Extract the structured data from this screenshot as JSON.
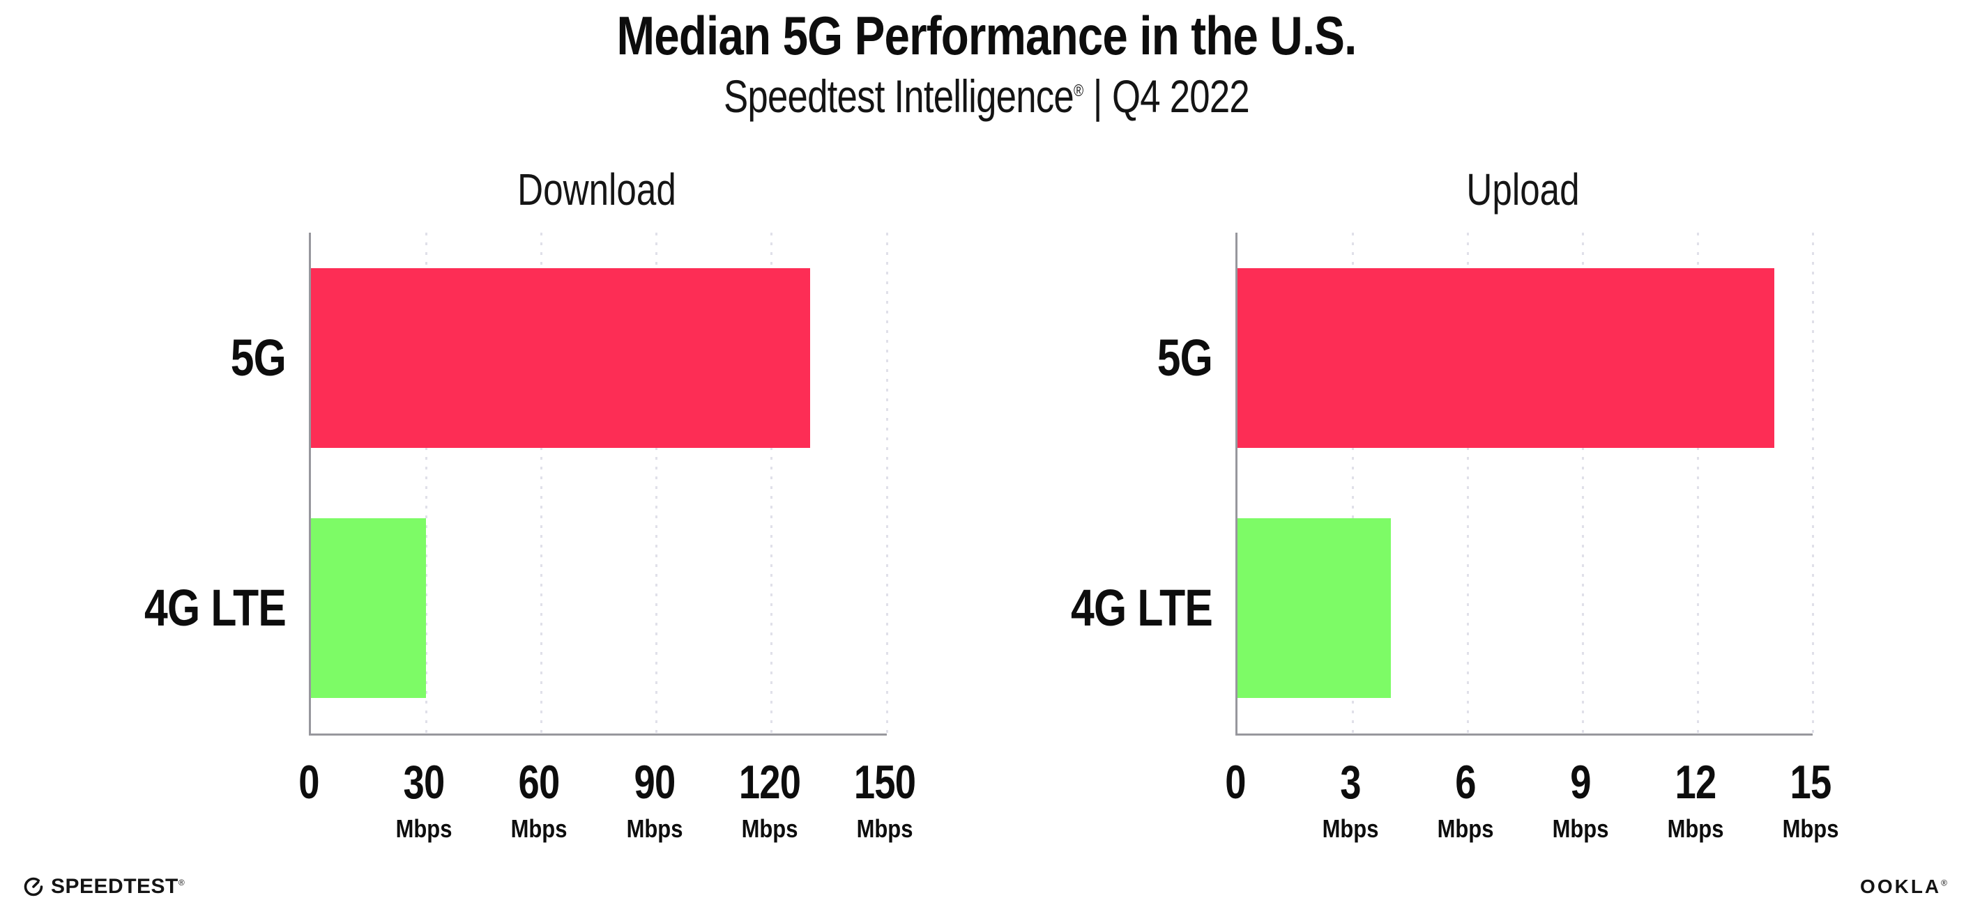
{
  "header": {
    "title": "Median 5G Performance in the U.S.",
    "subtitle": {
      "brand": "Speedtest Intelligence",
      "reg_mark": "®",
      "separator": "|",
      "period": "Q4 2022"
    }
  },
  "chart_data": [
    {
      "type": "bar",
      "orientation": "horizontal",
      "title": "Download",
      "categories": [
        "5G",
        "4G LTE"
      ],
      "values": [
        130,
        30
      ],
      "unit": "Mbps",
      "xlim": [
        0,
        150
      ],
      "xticks": [
        0,
        30,
        60,
        90,
        120,
        150
      ],
      "bar_colors": [
        "#FD2D55",
        "#7DFB66"
      ],
      "grid": "dotted-vertical",
      "axis_color": "#97979d",
      "gridline_color": "#e0e0e9"
    },
    {
      "type": "bar",
      "orientation": "horizontal",
      "title": "Upload",
      "categories": [
        "5G",
        "4G LTE"
      ],
      "values": [
        14,
        4
      ],
      "unit": "Mbps",
      "xlim": [
        0,
        15
      ],
      "xticks": [
        0,
        3,
        6,
        9,
        12,
        15
      ],
      "bar_colors": [
        "#FD2D55",
        "#7DFB66"
      ],
      "grid": "dotted-vertical",
      "axis_color": "#97979d",
      "gridline_color": "#e0e0e9"
    }
  ],
  "footer": {
    "speedtest_label": "SPEEDTEST",
    "speedtest_reg": "®",
    "ookla_label": "OOKLA",
    "ookla_reg": "®"
  }
}
